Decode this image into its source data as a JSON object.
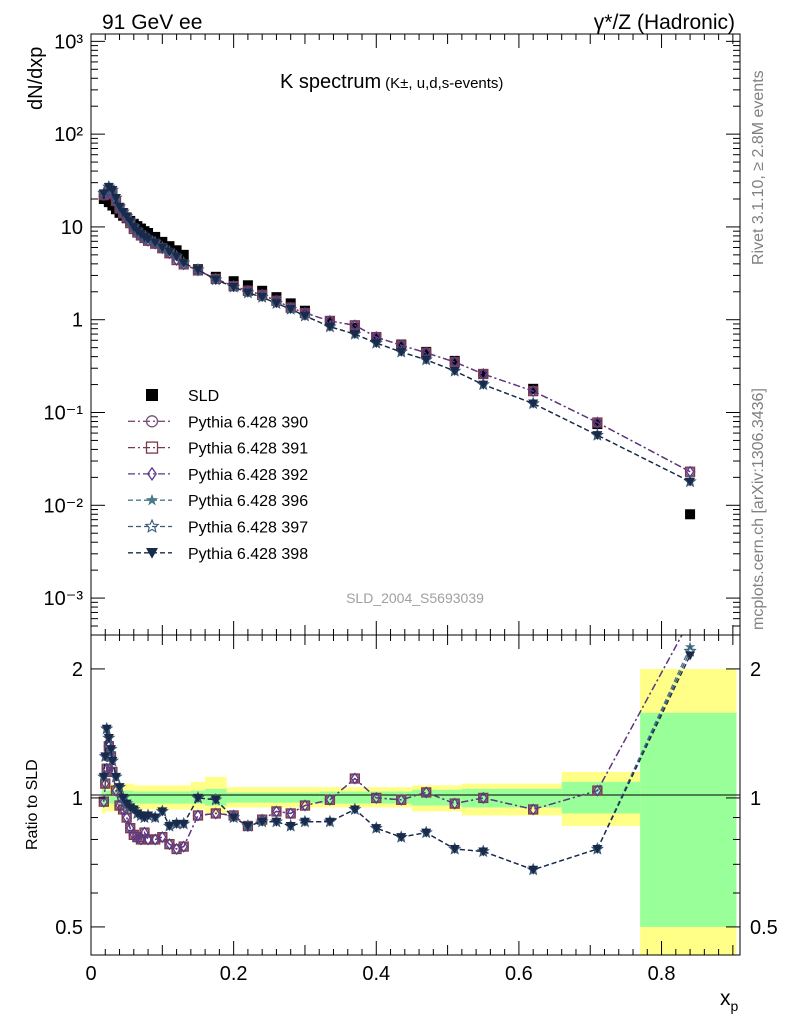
{
  "header": {
    "left_title": "91 GeV ee",
    "right_title": "γ*/Z (Hadronic)"
  },
  "side_labels": {
    "rivet": "Rivet 3.1.10, ≥ 2.8M events",
    "mcplots": "mcplots.cern.ch [arXiv:1306.3436]"
  },
  "watermark": "SLD_2004_S5693039",
  "chart_data": [
    {
      "type": "scatter",
      "title": "K spectrum",
      "title_suffix": "(K±, u,d,s-events)",
      "ylabel": "dN/dxp",
      "yscale": "log",
      "xlim": [
        0,
        0.91
      ],
      "ylim": [
        0.0004,
        1200
      ],
      "y_tick_labels": [
        "10⁻³",
        "10⁻²",
        "10⁻¹",
        "1",
        "10",
        "10²",
        "10³"
      ],
      "legend_position": "left-middle",
      "x": [
        0.018,
        0.025,
        0.03,
        0.035,
        0.04,
        0.045,
        0.05,
        0.055,
        0.06,
        0.065,
        0.07,
        0.075,
        0.08,
        0.09,
        0.1,
        0.11,
        0.12,
        0.13,
        0.15,
        0.175,
        0.2,
        0.22,
        0.24,
        0.26,
        0.28,
        0.3,
        0.335,
        0.37,
        0.4,
        0.435,
        0.47,
        0.51,
        0.55,
        0.62,
        0.71,
        0.84
      ],
      "series": [
        {
          "name": "SLD",
          "marker": "filled-square",
          "color": "#000000",
          "values": [
            20,
            18.5,
            17,
            15.5,
            14.2,
            13.2,
            12.4,
            11.6,
            10.8,
            10.2,
            9.6,
            9,
            8.6,
            7.8,
            6.9,
            6.2,
            5.6,
            5,
            3.5,
            2.9,
            2.6,
            2.35,
            2.05,
            1.75,
            1.5,
            1.25,
            0.96,
            0.82,
            0.65,
            0.54,
            0.45,
            0.36,
            0.26,
            0.18,
            0.075,
            0.008
          ]
        },
        {
          "name": "Pythia 6.428 390",
          "marker": "open-circle",
          "color": "#7a4f7a",
          "linestyle": "dashdot",
          "values": [
            22,
            24,
            22.5,
            19,
            15.8,
            14,
            12.6,
            11,
            9.5,
            8.7,
            8.1,
            7.6,
            7.1,
            6.6,
            5.9,
            5.2,
            4.4,
            3.95,
            3.4,
            2.75,
            2.3,
            2.05,
            1.85,
            1.6,
            1.35,
            1.18,
            0.97,
            0.87,
            0.65,
            0.53,
            0.44,
            0.35,
            0.26,
            0.17,
            0.078,
            0.023
          ]
        },
        {
          "name": "Pythia 6.428 391",
          "marker": "open-square",
          "color": "#7a3a4a",
          "linestyle": "dashdot",
          "values": [
            22,
            24,
            22.5,
            19,
            15.8,
            14,
            12.6,
            11,
            9.5,
            8.7,
            8.1,
            7.6,
            7.1,
            6.6,
            5.9,
            5.2,
            4.4,
            3.95,
            3.4,
            2.75,
            2.3,
            2.05,
            1.85,
            1.6,
            1.35,
            1.18,
            0.97,
            0.87,
            0.65,
            0.53,
            0.44,
            0.35,
            0.26,
            0.17,
            0.078,
            0.023
          ]
        },
        {
          "name": "Pythia 6.428 392",
          "marker": "open-diamond",
          "color": "#5a3a8a",
          "linestyle": "dashdot",
          "values": [
            22,
            24,
            22.5,
            19,
            15.8,
            14,
            12.6,
            11,
            9.5,
            8.7,
            8.1,
            7.6,
            7.1,
            6.6,
            5.9,
            5.2,
            4.4,
            3.95,
            3.4,
            2.75,
            2.3,
            2.05,
            1.85,
            1.6,
            1.35,
            1.18,
            0.97,
            0.87,
            0.65,
            0.53,
            0.44,
            0.35,
            0.26,
            0.17,
            0.078,
            0.023
          ]
        },
        {
          "name": "Pythia 6.428 396",
          "marker": "filled-star",
          "color": "#4a7a8a",
          "linestyle": "dashed",
          "values": [
            23,
            27,
            25,
            20.5,
            16.5,
            14.5,
            13,
            11.5,
            10,
            9.1,
            8.4,
            7.8,
            7.4,
            6.8,
            6,
            5.4,
            4.8,
            4.1,
            3.45,
            2.7,
            2.25,
            1.95,
            1.75,
            1.5,
            1.3,
            1.1,
            0.84,
            0.7,
            0.56,
            0.45,
            0.37,
            0.28,
            0.2,
            0.125,
            0.057,
            0.018
          ]
        },
        {
          "name": "Pythia 6.428 397",
          "marker": "open-star",
          "color": "#3a5a7a",
          "linestyle": "dashed",
          "values": [
            23,
            27,
            25,
            20.5,
            16.5,
            14.5,
            13,
            11.5,
            10,
            9.1,
            8.4,
            7.8,
            7.4,
            6.8,
            6,
            5.4,
            4.8,
            4.1,
            3.45,
            2.7,
            2.25,
            1.95,
            1.75,
            1.5,
            1.3,
            1.1,
            0.84,
            0.7,
            0.56,
            0.45,
            0.37,
            0.28,
            0.2,
            0.125,
            0.057,
            0.018
          ]
        },
        {
          "name": "Pythia 6.428 398",
          "marker": "filled-triangle-down",
          "color": "#1a2a4a",
          "linestyle": "dashed",
          "values": [
            23,
            27,
            25,
            20.5,
            16.5,
            14.5,
            13,
            11.5,
            10,
            9.1,
            8.4,
            7.8,
            7.4,
            6.8,
            6,
            5.4,
            4.8,
            4.1,
            3.45,
            2.7,
            2.25,
            1.95,
            1.75,
            1.5,
            1.3,
            1.1,
            0.84,
            0.7,
            0.56,
            0.45,
            0.37,
            0.28,
            0.2,
            0.125,
            0.057,
            0.018
          ]
        }
      ]
    },
    {
      "type": "scatter",
      "ylabel": "Ratio to SLD",
      "xlabel": "xp",
      "yscale": "log",
      "xlim": [
        0,
        0.91
      ],
      "ylim": [
        0.43,
        2.4
      ],
      "x_tick_labels": [
        "0",
        "0.2",
        "0.4",
        "0.6",
        "0.8"
      ],
      "y_tick_labels": [
        "0.5",
        "1",
        "2"
      ],
      "band_colors": {
        "stat": "#99ff99",
        "total": "#ffff88"
      },
      "bands": [
        {
          "x0": 0.015,
          "x1": 0.02,
          "stat": [
            0.96,
            1.05
          ],
          "total": [
            0.92,
            1.09
          ]
        },
        {
          "x0": 0.02,
          "x1": 0.06,
          "stat": [
            0.97,
            1.04
          ],
          "total": [
            0.93,
            1.08
          ]
        },
        {
          "x0": 0.06,
          "x1": 0.14,
          "stat": [
            0.97,
            1.035
          ],
          "total": [
            0.94,
            1.07
          ]
        },
        {
          "x0": 0.14,
          "x1": 0.16,
          "stat": [
            0.97,
            1.04
          ],
          "total": [
            0.94,
            1.09
          ]
        },
        {
          "x0": 0.16,
          "x1": 0.19,
          "stat": [
            0.96,
            1.05
          ],
          "total": [
            0.92,
            1.12
          ]
        },
        {
          "x0": 0.19,
          "x1": 0.32,
          "stat": [
            0.975,
            1.03
          ],
          "total": [
            0.95,
            1.06
          ]
        },
        {
          "x0": 0.32,
          "x1": 0.45,
          "stat": [
            0.97,
            1.035
          ],
          "total": [
            0.95,
            1.06
          ]
        },
        {
          "x0": 0.45,
          "x1": 0.52,
          "stat": [
            0.96,
            1.045
          ],
          "total": [
            0.93,
            1.07
          ]
        },
        {
          "x0": 0.52,
          "x1": 0.66,
          "stat": [
            0.95,
            1.05
          ],
          "total": [
            0.91,
            1.08
          ]
        },
        {
          "x0": 0.66,
          "x1": 0.77,
          "stat": [
            0.92,
            1.09
          ],
          "total": [
            0.86,
            1.15
          ]
        },
        {
          "x0": 0.77,
          "x1": 0.905,
          "stat": [
            0.5,
            1.58
          ],
          "total": [
            0.35,
            2.0
          ]
        }
      ],
      "x": [
        0.018,
        0.02,
        0.022,
        0.025,
        0.028,
        0.03,
        0.035,
        0.04,
        0.045,
        0.05,
        0.055,
        0.06,
        0.065,
        0.07,
        0.075,
        0.08,
        0.09,
        0.1,
        0.11,
        0.12,
        0.13,
        0.15,
        0.175,
        0.2,
        0.22,
        0.24,
        0.26,
        0.28,
        0.3,
        0.335,
        0.37,
        0.4,
        0.435,
        0.47,
        0.51,
        0.55,
        0.62,
        0.71,
        0.84
      ],
      "series": [
        {
          "name": "Pythia 6.428 390",
          "marker": "open-circle",
          "color": "#7a4f7a",
          "linestyle": "dashdot",
          "values": [
            0.98,
            1.08,
            1.17,
            1.32,
            1.25,
            1.15,
            1.04,
            0.96,
            0.94,
            0.9,
            0.85,
            0.82,
            0.81,
            0.8,
            0.83,
            0.8,
            0.8,
            0.81,
            0.78,
            0.76,
            0.77,
            0.91,
            0.92,
            0.91,
            0.86,
            0.89,
            0.93,
            0.92,
            0.96,
            0.99,
            1.11,
            1.0,
            0.99,
            1.03,
            0.97,
            1.0,
            0.94,
            1.04,
            2.6
          ]
        },
        {
          "name": "Pythia 6.428 391",
          "marker": "open-square",
          "color": "#7a3a4a",
          "linestyle": "dashdot",
          "values": [
            0.98,
            1.08,
            1.17,
            1.32,
            1.25,
            1.15,
            1.04,
            0.96,
            0.94,
            0.9,
            0.85,
            0.82,
            0.81,
            0.8,
            0.83,
            0.8,
            0.8,
            0.81,
            0.78,
            0.76,
            0.77,
            0.91,
            0.92,
            0.91,
            0.86,
            0.89,
            0.93,
            0.92,
            0.96,
            0.99,
            1.11,
            1.0,
            0.99,
            1.03,
            0.97,
            1.0,
            0.94,
            1.04,
            2.6
          ]
        },
        {
          "name": "Pythia 6.428 392",
          "marker": "open-diamond",
          "color": "#5a3a8a",
          "linestyle": "dashdot",
          "values": [
            0.98,
            1.08,
            1.17,
            1.32,
            1.25,
            1.15,
            1.04,
            0.96,
            0.94,
            0.9,
            0.85,
            0.82,
            0.81,
            0.8,
            0.83,
            0.8,
            0.8,
            0.81,
            0.78,
            0.76,
            0.77,
            0.91,
            0.92,
            0.91,
            0.86,
            0.89,
            0.93,
            0.92,
            0.96,
            0.99,
            1.11,
            1.0,
            0.99,
            1.03,
            0.97,
            1.0,
            0.94,
            1.04,
            2.6
          ]
        },
        {
          "name": "Pythia 6.428 396",
          "marker": "filled-star",
          "color": "#4a7a8a",
          "linestyle": "dashed",
          "values": [
            1.12,
            1.25,
            1.45,
            1.38,
            1.3,
            1.22,
            1.12,
            1.06,
            1.0,
            0.97,
            0.95,
            0.94,
            0.92,
            0.91,
            0.9,
            0.91,
            0.9,
            0.93,
            0.86,
            0.87,
            0.87,
            1.0,
            0.99,
            0.9,
            0.86,
            0.88,
            0.88,
            0.86,
            0.88,
            0.88,
            0.94,
            0.85,
            0.81,
            0.83,
            0.76,
            0.75,
            0.68,
            0.76,
            2.25
          ]
        },
        {
          "name": "Pythia 6.428 397",
          "marker": "open-star",
          "color": "#3a5a7a",
          "linestyle": "dashed",
          "values": [
            1.12,
            1.25,
            1.45,
            1.38,
            1.3,
            1.22,
            1.12,
            1.06,
            1.0,
            0.97,
            0.95,
            0.94,
            0.92,
            0.91,
            0.9,
            0.91,
            0.9,
            0.93,
            0.86,
            0.87,
            0.87,
            1.0,
            0.99,
            0.9,
            0.86,
            0.88,
            0.88,
            0.86,
            0.88,
            0.88,
            0.94,
            0.85,
            0.81,
            0.83,
            0.76,
            0.75,
            0.68,
            0.76,
            2.2
          ]
        },
        {
          "name": "Pythia 6.428 398",
          "marker": "filled-triangle-down",
          "color": "#1a2a4a",
          "linestyle": "dashed",
          "values": [
            1.12,
            1.25,
            1.45,
            1.38,
            1.3,
            1.22,
            1.12,
            1.06,
            1.0,
            0.97,
            0.95,
            0.94,
            0.92,
            0.91,
            0.9,
            0.91,
            0.9,
            0.93,
            0.86,
            0.87,
            0.87,
            1.0,
            0.99,
            0.9,
            0.86,
            0.88,
            0.88,
            0.86,
            0.88,
            0.88,
            0.94,
            0.85,
            0.81,
            0.83,
            0.76,
            0.75,
            0.68,
            0.76,
            2.15
          ]
        }
      ]
    }
  ]
}
